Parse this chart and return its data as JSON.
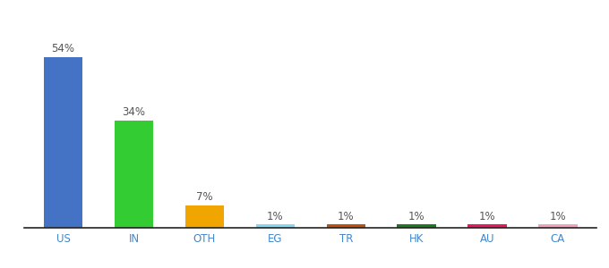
{
  "categories": [
    "US",
    "IN",
    "OTH",
    "EG",
    "TR",
    "HK",
    "AU",
    "CA"
  ],
  "values": [
    54,
    34,
    7,
    1,
    1,
    1,
    1,
    1
  ],
  "bar_colors": [
    "#4472c4",
    "#33cc33",
    "#f0a500",
    "#87d7f0",
    "#c05010",
    "#1e7a1e",
    "#e8185a",
    "#f4a0b8"
  ],
  "ylabel": "",
  "xlabel": "",
  "ylim": [
    0,
    62
  ],
  "background_color": "#ffffff",
  "label_fontsize": 8.5,
  "tick_fontsize": 8.5,
  "tick_color": "#4488cc"
}
